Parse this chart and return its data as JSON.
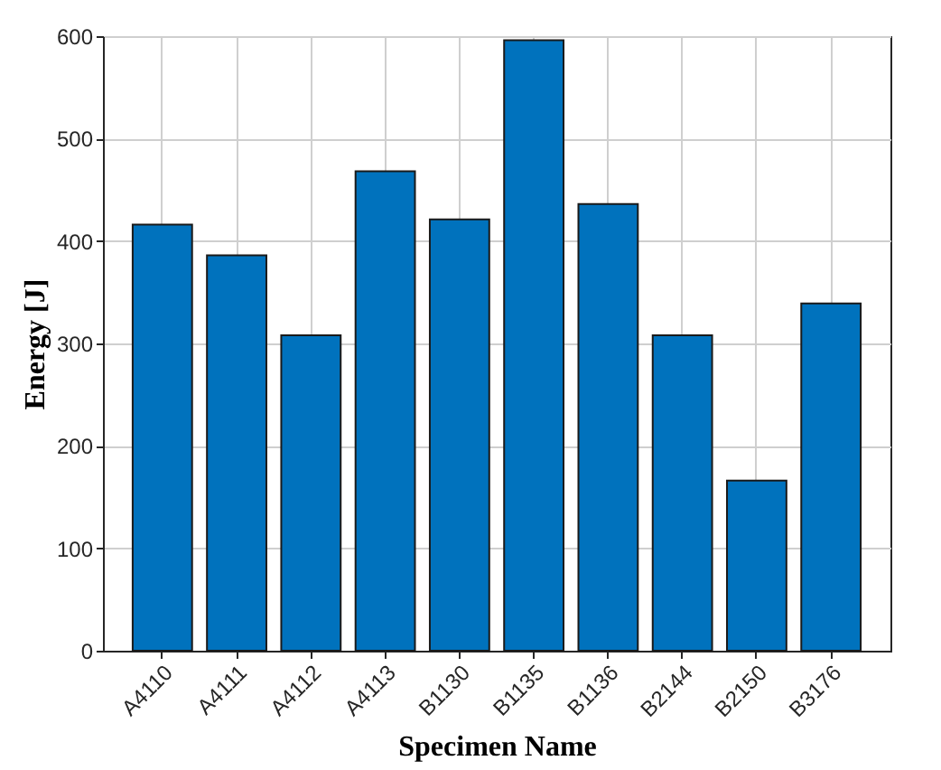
{
  "chart_data": {
    "type": "bar",
    "xlabel": "Specimen Name",
    "ylabel": "Energy [J]",
    "categories": [
      "A4110",
      "A4111",
      "A4112",
      "A4113",
      "B1130",
      "B1135",
      "B1136",
      "B2144",
      "B2150",
      "B3176"
    ],
    "values": [
      416,
      386,
      308,
      468,
      421,
      596,
      436,
      308,
      166,
      339
    ],
    "color": "#0072bd",
    "ylim": [
      0,
      600
    ],
    "yticks": [
      0,
      100,
      200,
      300,
      400,
      500,
      600
    ],
    "grid": true
  }
}
